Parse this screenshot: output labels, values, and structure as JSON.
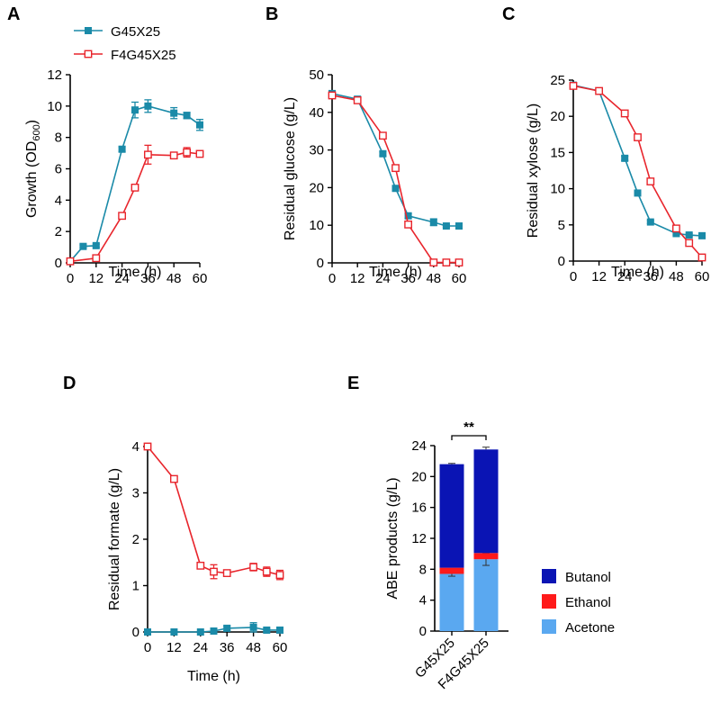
{
  "colors": {
    "series1": "#1a8aa8",
    "series2": "#e8252c",
    "butanol": "#0a14b4",
    "ethanol": "#ff1a1a",
    "acetone": "#5aa8f0"
  },
  "legend": {
    "series1": "G45X25",
    "series2": "F4G45X25"
  },
  "chart_data": [
    {
      "id": "A",
      "letter": "A",
      "type": "line",
      "xlabel": "Time  (h)",
      "ylabel": "Growth (OD",
      "ylabel_sub": "600",
      "ylabel_end": ")",
      "xlim": [
        0,
        60
      ],
      "ylim": [
        0,
        12
      ],
      "xticks": [
        0,
        12,
        24,
        36,
        48,
        60
      ],
      "yticks": [
        0,
        2,
        4,
        6,
        8,
        10,
        12
      ],
      "series": [
        {
          "name": "G45X25",
          "x": [
            0,
            6,
            12,
            24,
            30,
            36,
            48,
            54,
            60
          ],
          "y": [
            0.1,
            1.05,
            1.1,
            7.25,
            9.75,
            10.0,
            9.55,
            9.4,
            8.8
          ],
          "err": [
            0.05,
            0.1,
            0.1,
            0.15,
            0.5,
            0.4,
            0.35,
            0.2,
            0.35
          ]
        },
        {
          "name": "F4G45X25",
          "x": [
            0,
            12,
            24,
            30,
            36,
            48,
            54,
            60
          ],
          "y": [
            0.1,
            0.3,
            3.0,
            4.8,
            6.9,
            6.85,
            7.05,
            6.95
          ],
          "err": [
            0.05,
            0.05,
            0.1,
            0.1,
            0.6,
            0.1,
            0.3,
            0.15
          ]
        }
      ]
    },
    {
      "id": "B",
      "letter": "B",
      "type": "line",
      "xlabel": "Time  (h)",
      "ylabel": "Residual glucose (g/L)",
      "xlim": [
        0,
        60
      ],
      "ylim": [
        0,
        50
      ],
      "xticks": [
        0,
        12,
        24,
        36,
        48,
        60
      ],
      "yticks": [
        0,
        10,
        20,
        30,
        40,
        50
      ],
      "series": [
        {
          "name": "G45X25",
          "x": [
            0,
            12,
            24,
            30,
            36,
            48,
            54,
            60
          ],
          "y": [
            45.0,
            43.5,
            29.0,
            19.8,
            12.5,
            10.8,
            9.8,
            9.8
          ],
          "err": [
            0.4,
            0.3,
            0.5,
            0.5,
            0.6,
            0.9,
            0.3,
            0.3
          ]
        },
        {
          "name": "F4G45X25",
          "x": [
            0,
            12,
            24,
            30,
            36,
            48,
            54,
            60
          ],
          "y": [
            44.5,
            43.2,
            33.8,
            25.2,
            10.2,
            0.1,
            0.1,
            0.1
          ],
          "err": [
            0.3,
            0.3,
            0.4,
            0.4,
            0.4,
            0.1,
            0.1,
            0.1
          ]
        }
      ]
    },
    {
      "id": "C",
      "letter": "C",
      "type": "line",
      "xlabel": "Time  (h)",
      "ylabel": "Residual xylose (g/L)",
      "xlim": [
        0,
        60
      ],
      "ylim": [
        0,
        25
      ],
      "xticks": [
        0,
        12,
        24,
        36,
        48,
        60
      ],
      "yticks": [
        0,
        5,
        10,
        15,
        20,
        25
      ],
      "series": [
        {
          "name": "G45X25",
          "x": [
            0,
            12,
            24,
            30,
            36,
            48,
            54,
            60
          ],
          "y": [
            24.3,
            23.5,
            14.2,
            9.4,
            5.4,
            3.8,
            3.6,
            3.5
          ],
          "err": [
            0.3,
            0.2,
            0.3,
            0.3,
            0.2,
            0.2,
            0.2,
            0.2
          ]
        },
        {
          "name": "F4G45X25",
          "x": [
            0,
            12,
            24,
            30,
            36,
            48,
            54,
            60
          ],
          "y": [
            24.2,
            23.5,
            20.4,
            17.1,
            11.0,
            4.5,
            2.5,
            0.5
          ],
          "err": [
            0.3,
            0.2,
            0.3,
            0.3,
            0.3,
            0.3,
            0.2,
            0.1
          ]
        }
      ]
    },
    {
      "id": "D",
      "letter": "D",
      "type": "line",
      "xlabel": "Time  (h)",
      "ylabel": "Residual formate (g/L)",
      "xlim": [
        0,
        60
      ],
      "ylim": [
        0,
        4
      ],
      "xticks": [
        0,
        12,
        24,
        36,
        48,
        60
      ],
      "yticks": [
        0,
        1,
        2,
        3,
        4
      ],
      "series": [
        {
          "name": "G45X25",
          "x": [
            0,
            12,
            24,
            30,
            36,
            48,
            54,
            60
          ],
          "y": [
            0.0,
            0.0,
            0.0,
            0.02,
            0.08,
            0.1,
            0.04,
            0.04
          ],
          "err": [
            0.01,
            0.01,
            0.01,
            0.02,
            0.05,
            0.1,
            0.03,
            0.03
          ]
        },
        {
          "name": "F4G45X25",
          "x": [
            0,
            12,
            24,
            30,
            36,
            48,
            54,
            60
          ],
          "y": [
            4.0,
            3.3,
            1.43,
            1.3,
            1.27,
            1.4,
            1.3,
            1.23
          ],
          "err": [
            0.05,
            0.04,
            0.05,
            0.15,
            0.05,
            0.08,
            0.1,
            0.1
          ]
        }
      ]
    },
    {
      "id": "E",
      "letter": "E",
      "type": "stacked-bar",
      "ylabel": "ABE products (g/L)",
      "ylim": [
        0,
        24
      ],
      "yticks": [
        0,
        4,
        8,
        12,
        16,
        20,
        24
      ],
      "categories": [
        "G45X25",
        "F4G45X25"
      ],
      "series": [
        {
          "name": "Acetone",
          "values": [
            7.4,
            9.3
          ],
          "err": [
            0.3,
            0.8
          ]
        },
        {
          "name": "Ethanol",
          "values": [
            0.8,
            0.8
          ]
        },
        {
          "name": "Butanol",
          "values": [
            13.4,
            13.4
          ]
        }
      ],
      "totals": [
        21.6,
        23.5
      ],
      "total_err": [
        0.1,
        0.3
      ],
      "significance": "**",
      "legend_order": [
        "Butanol",
        "Ethanol",
        "Acetone"
      ]
    }
  ]
}
